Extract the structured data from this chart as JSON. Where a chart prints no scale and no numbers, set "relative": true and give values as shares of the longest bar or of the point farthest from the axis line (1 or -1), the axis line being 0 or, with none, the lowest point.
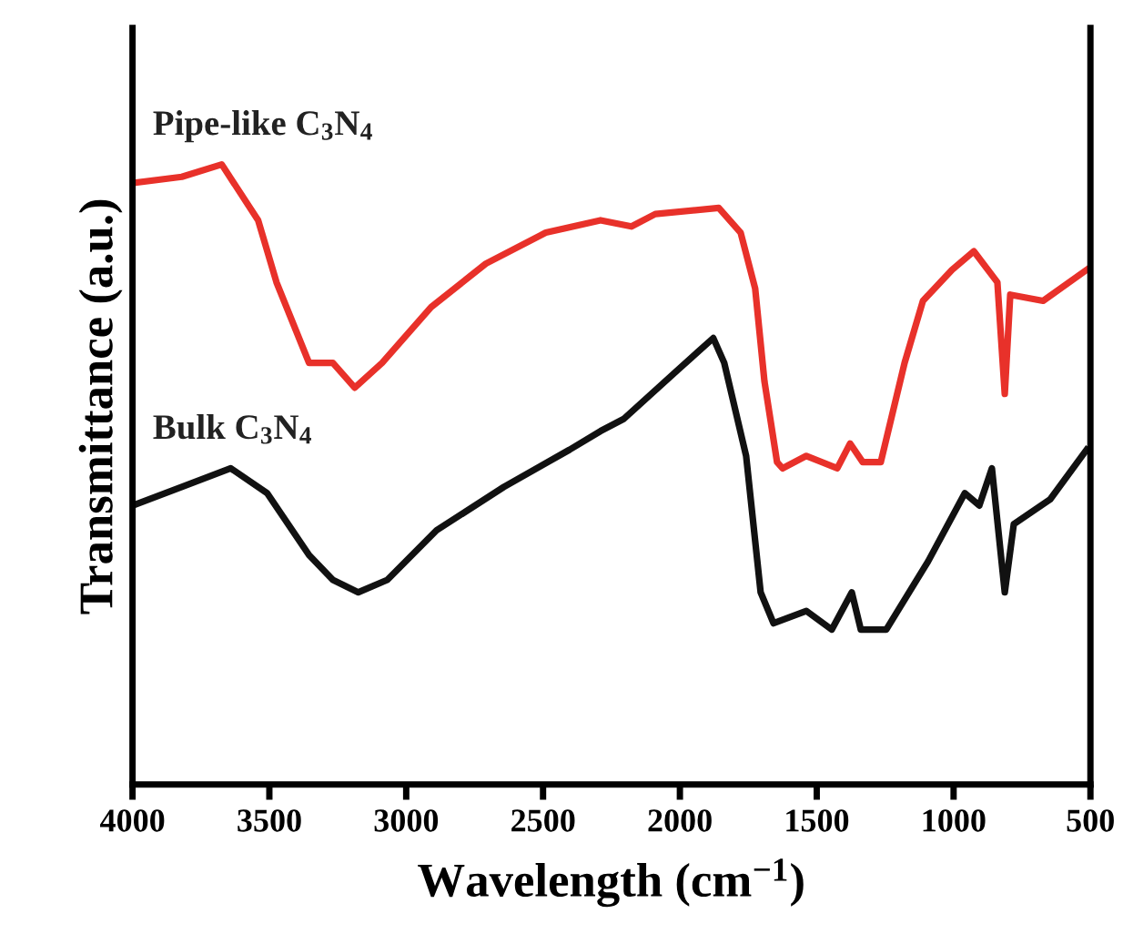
{
  "chart_data": {
    "type": "line",
    "relative": true,
    "xlabel": "Wavelength (cm$^{−1}$)",
    "ylabel": "Transmittance (a.u.)",
    "xlim": [
      4000,
      500
    ],
    "xticks": [
      4000,
      3500,
      3000,
      2500,
      2000,
      1500,
      1000,
      500
    ],
    "tick_labels": "x",
    "grid": false,
    "legend": false,
    "series": [
      {
        "name": "Pipe-like C$_{3}$N$_{4}$",
        "color": "#e8312a",
        "x": [
          4000,
          3820,
          3674,
          3541,
          3474,
          3355,
          3268,
          3188,
          3088,
          2909,
          2709,
          2490,
          2290,
          2177,
          2090,
          1858,
          1778,
          1725,
          1691,
          1645,
          1625,
          1538,
          1425,
          1378,
          1332,
          1266,
          1179,
          1112,
          1006,
          926,
          840,
          813,
          793,
          673,
          514
        ],
        "values": [
          0.97,
          0.98,
          1.0,
          0.91,
          0.81,
          0.68,
          0.68,
          0.64,
          0.68,
          0.77,
          0.84,
          0.89,
          0.91,
          0.9,
          0.92,
          0.93,
          0.89,
          0.8,
          0.65,
          0.52,
          0.51,
          0.53,
          0.51,
          0.55,
          0.52,
          0.52,
          0.68,
          0.78,
          0.83,
          0.86,
          0.81,
          0.63,
          0.79,
          0.78,
          0.83
        ]
      },
      {
        "name": "Bulk C$_{3}$N$_{4}$",
        "color": "#111111",
        "x": [
          4000,
          3820,
          3641,
          3508,
          3355,
          3268,
          3175,
          3069,
          2889,
          2643,
          2403,
          2290,
          2204,
          2004,
          1878,
          1838,
          1758,
          1705,
          1658,
          1538,
          1445,
          1372,
          1339,
          1246,
          1093,
          959,
          906,
          860,
          813,
          780,
          647,
          514
        ],
        "values": [
          0.45,
          0.48,
          0.51,
          0.47,
          0.37,
          0.33,
          0.31,
          0.33,
          0.41,
          0.48,
          0.54,
          0.57,
          0.59,
          0.67,
          0.72,
          0.68,
          0.53,
          0.31,
          0.26,
          0.28,
          0.25,
          0.31,
          0.25,
          0.25,
          0.36,
          0.47,
          0.45,
          0.51,
          0.31,
          0.42,
          0.46,
          0.54
        ]
      }
    ]
  }
}
